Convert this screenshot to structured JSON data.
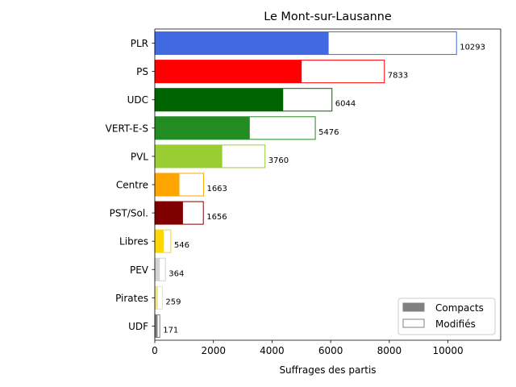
{
  "chart_data": {
    "type": "bar",
    "orientation": "horizontal",
    "stacked": true,
    "title": "Le Mont-sur-Lausanne",
    "xlabel": "Suffrages des partis",
    "ylabel": "",
    "xlim": [
      0,
      11800
    ],
    "xticks": [
      "0",
      "2000",
      "4000",
      "6000",
      "8000",
      "10000"
    ],
    "grid": false,
    "legend": {
      "position": "bottom-right",
      "entries": [
        {
          "label": "Compacts",
          "color": "#808080",
          "filled": true
        },
        {
          "label": "Modifiés",
          "color": "#808080",
          "filled": false
        }
      ]
    },
    "categories": [
      "PLR",
      "PS",
      "UDC",
      "VERT-E-S",
      "PVL",
      "Centre",
      "PST/Sol.",
      "Libres",
      "PEV",
      "Pirates",
      "UDF"
    ],
    "colors": [
      "#4169e1",
      "#ff0000",
      "#006400",
      "#228b22",
      "#9acd32",
      "#ffa500",
      "#800000",
      "#ffd700",
      "#d3d3d3",
      "#f0e68c",
      "#808080"
    ],
    "series": [
      {
        "name": "Compacts",
        "values": [
          5930,
          5010,
          4380,
          3240,
          2300,
          840,
          960,
          300,
          170,
          110,
          95
        ]
      },
      {
        "name": "Modifiés",
        "values": [
          4363,
          2823,
          1664,
          2236,
          1460,
          823,
          696,
          246,
          194,
          149,
          76
        ]
      }
    ],
    "totals": [
      "10293",
      "7833",
      "6044",
      "5476",
      "3760",
      "1663",
      "1656",
      "546",
      "364",
      "259",
      "171"
    ]
  }
}
